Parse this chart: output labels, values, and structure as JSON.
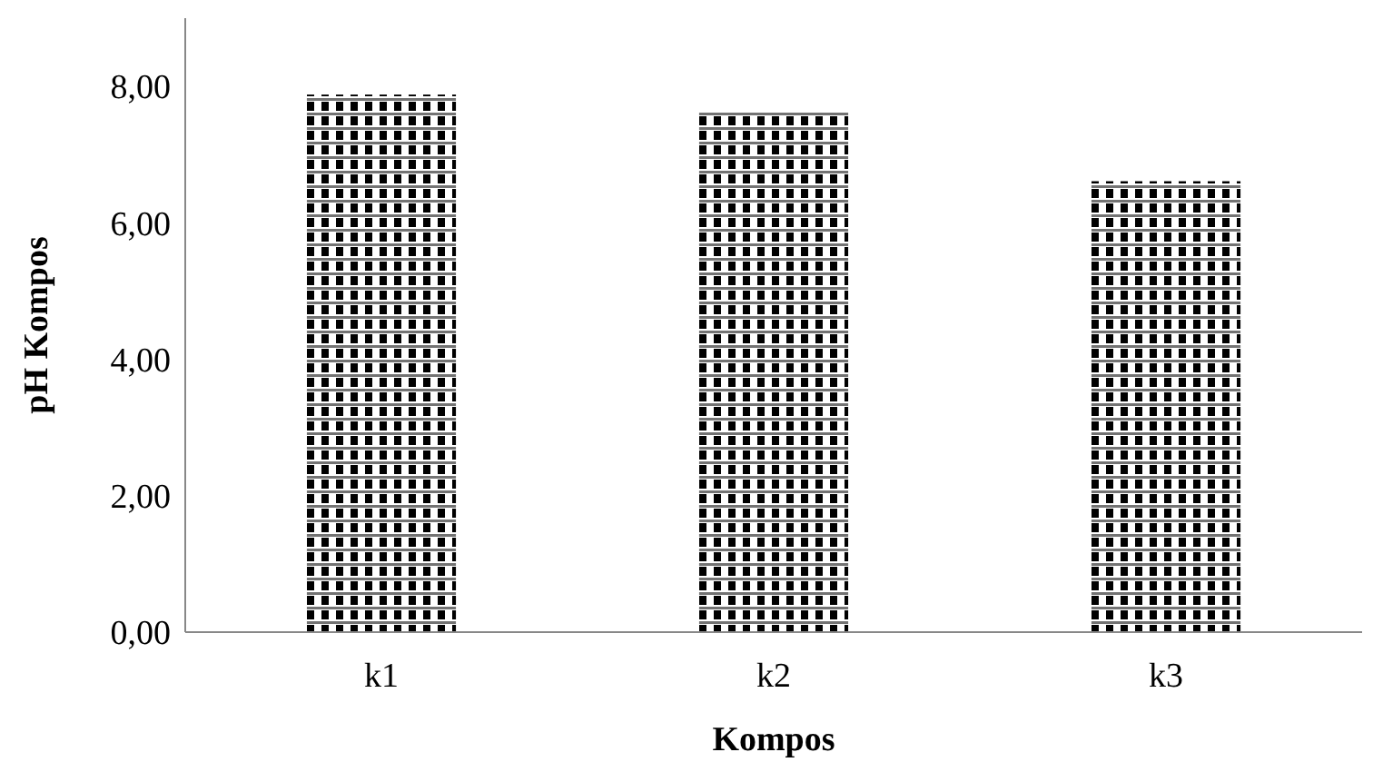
{
  "chart_data": {
    "type": "bar",
    "xlabel": "Kompos",
    "ylabel": "pH Kompos",
    "categories": [
      "k1",
      "k2",
      "k3"
    ],
    "values": [
      7.88,
      7.64,
      6.61
    ],
    "color": "#000000",
    "ylim": [
      0,
      9
    ],
    "yticks": [
      {
        "value": 0,
        "label": "0,00"
      },
      {
        "value": 2,
        "label": "2,00"
      },
      {
        "value": 4,
        "label": "4,00"
      },
      {
        "value": 6,
        "label": "6,00"
      },
      {
        "value": 8,
        "label": "8,00"
      }
    ]
  }
}
